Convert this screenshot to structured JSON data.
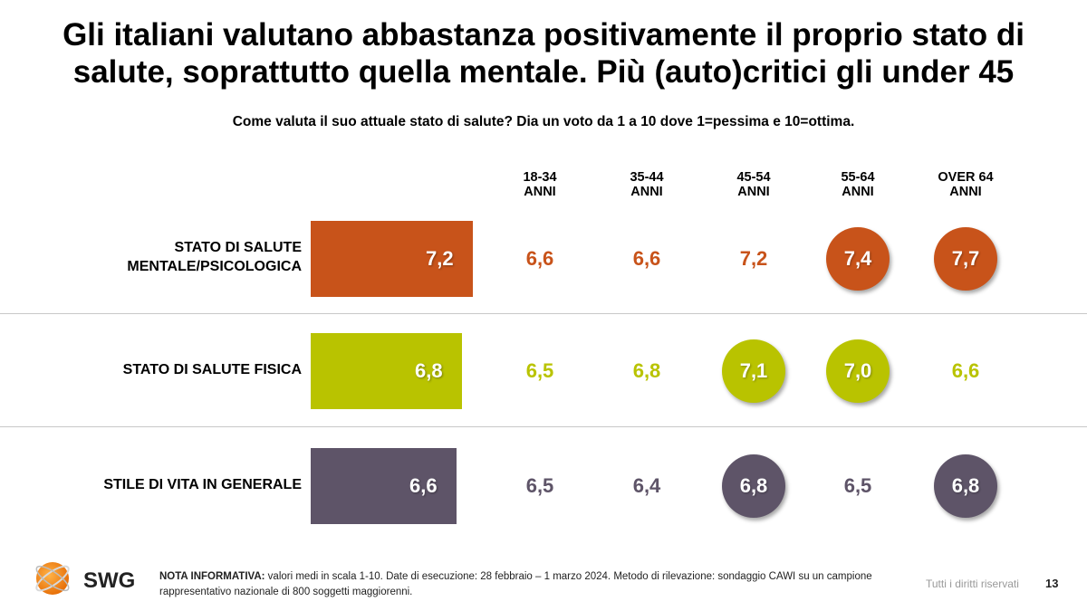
{
  "title_line1": "Gli italiani valutano abbastanza positivamente il proprio stato di",
  "title_line2": "salute, soprattutto quella mentale. Più (auto)critici gli under 45",
  "subtitle": "Come valuta il suo attuale stato di salute? Dia un voto da 1 a 10 dove 1=pessima e 10=ottima.",
  "chart_data": {
    "type": "bar",
    "title": "Gli italiani valutano abbastanza positivamente il proprio stato di salute, soprattutto quella mentale. Più (auto)critici gli under 45",
    "subtitle": "Come valuta il suo attuale stato di salute? Dia un voto da 1 a 10 dove 1=pessima e 10=ottima.",
    "scale": [
      1,
      10
    ],
    "categories": [
      "STATO DI SALUTE MENTALE/PSICOLOGICA",
      "STATO DI SALUTE FISICA",
      "STILE DI VITA IN GENERALE"
    ],
    "columns": [
      {
        "line1": "18-34",
        "line2": "ANNI"
      },
      {
        "line1": "35-44",
        "line2": "ANNI"
      },
      {
        "line1": "45-54",
        "line2": "ANNI"
      },
      {
        "line1": "55-64",
        "line2": "ANNI"
      },
      {
        "line1": "OVER 64",
        "line2": "ANNI"
      }
    ],
    "rows": [
      {
        "label_lines": [
          "STATO DI SALUTE",
          "MENTALE/PSICOLOGICA"
        ],
        "total": 7.2,
        "total_label": "7,2",
        "color": "#c8531a",
        "cells": [
          {
            "value": 6.6,
            "label": "6,6",
            "highlight": false
          },
          {
            "value": 6.6,
            "label": "6,6",
            "highlight": false
          },
          {
            "value": 7.2,
            "label": "7,2",
            "highlight": false
          },
          {
            "value": 7.4,
            "label": "7,4",
            "highlight": true
          },
          {
            "value": 7.7,
            "label": "7,7",
            "highlight": true
          }
        ]
      },
      {
        "label_lines": [
          "STATO DI SALUTE FISICA"
        ],
        "total": 6.8,
        "total_label": "6,8",
        "color": "#b9c300",
        "cells": [
          {
            "value": 6.5,
            "label": "6,5",
            "highlight": false
          },
          {
            "value": 6.8,
            "label": "6,8",
            "highlight": false
          },
          {
            "value": 7.1,
            "label": "7,1",
            "highlight": true
          },
          {
            "value": 7.0,
            "label": "7,0",
            "highlight": true
          },
          {
            "value": 6.6,
            "label": "6,6",
            "highlight": false
          }
        ]
      },
      {
        "label_lines": [
          "STILE DI VITA IN GENERALE"
        ],
        "total": 6.6,
        "total_label": "6,6",
        "color": "#5e5468",
        "cells": [
          {
            "value": 6.5,
            "label": "6,5",
            "highlight": false
          },
          {
            "value": 6.4,
            "label": "6,4",
            "highlight": false
          },
          {
            "value": 6.8,
            "label": "6,8",
            "highlight": true
          },
          {
            "value": 6.5,
            "label": "6,5",
            "highlight": false
          },
          {
            "value": 6.8,
            "label": "6,8",
            "highlight": true
          }
        ]
      }
    ]
  },
  "footer": {
    "logo_text": "SWG",
    "note_bold": "NOTA INFORMATIVA:",
    "note_text": " valori medi in scala 1-10. Date di esecuzione: 28 febbraio – 1 marzo 2024. Metodo di rilevazione: sondaggio CAWI su un campione rappresentativo nazionale di 800 soggetti maggiorenni.",
    "rights": "Tutti i diritti riservati",
    "page_number": "13"
  }
}
